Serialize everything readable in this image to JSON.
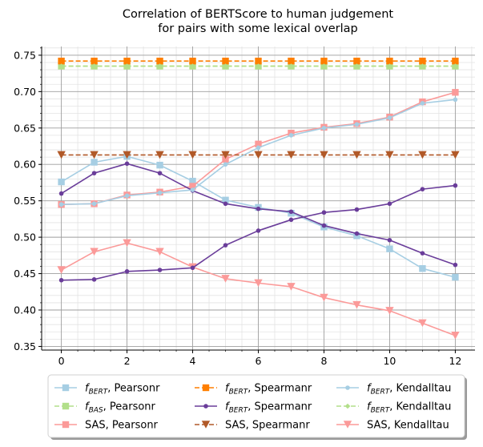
{
  "chart_data": {
    "type": "line",
    "title_lines": [
      "Correlation of BERTScore to human judgement",
      "for pairs with some lexical overlap"
    ],
    "xlabel": "",
    "ylabel": "",
    "xlim": [
      -0.6,
      12.6
    ],
    "ylim": [
      0.345,
      0.762
    ],
    "x_ticks": [
      0,
      2,
      4,
      6,
      8,
      10,
      12
    ],
    "x_tick_labels": [
      "0",
      "2",
      "4",
      "6",
      "8",
      "10",
      "12"
    ],
    "y_ticks": [
      0.35,
      0.4,
      0.45,
      0.5,
      0.55,
      0.6,
      0.65,
      0.7,
      0.75
    ],
    "y_tick_labels": [
      "0.35",
      "0.40",
      "0.45",
      "0.50",
      "0.55",
      "0.60",
      "0.65",
      "0.70",
      "0.75"
    ],
    "grid": "major and minor",
    "legend_position": "bottom, outside plot, 3 columns",
    "x": [
      0,
      1,
      2,
      3,
      4,
      5,
      6,
      7,
      8,
      9,
      10,
      11,
      12
    ],
    "series": [
      {
        "legend_main": "f",
        "legend_sub": "BERT",
        "legend_tail": ", Pearsonr",
        "color": "#a6cee3",
        "style": "solid",
        "marker": "square",
        "values": [
          0.576,
          0.603,
          0.611,
          0.599,
          0.577,
          0.551,
          0.541,
          0.533,
          0.514,
          0.502,
          0.484,
          0.457,
          0.445
        ]
      },
      {
        "legend_main": "f",
        "legend_sub": "BAS",
        "legend_tail": ", Pearsonr",
        "color": "#b2df8a",
        "style": "dashed",
        "marker": "square",
        "values": [
          0.735,
          0.735,
          0.735,
          0.735,
          0.735,
          0.735,
          0.735,
          0.735,
          0.735,
          0.735,
          0.735,
          0.735,
          0.735
        ]
      },
      {
        "legend_main": "SAS, Pearsonr",
        "legend_sub": "",
        "legend_tail": "",
        "color": "#fb9a99",
        "style": "solid",
        "marker": "square",
        "values": [
          0.545,
          0.546,
          0.558,
          0.562,
          0.57,
          0.607,
          0.628,
          0.643,
          0.651,
          0.656,
          0.665,
          0.686,
          0.699
        ]
      },
      {
        "legend_main": "f",
        "legend_sub": "BERT",
        "legend_tail": ", Spearmanr",
        "color": "#ff7f00",
        "style": "dashed",
        "marker": "square",
        "values": [
          0.742,
          0.742,
          0.742,
          0.742,
          0.742,
          0.742,
          0.742,
          0.742,
          0.742,
          0.742,
          0.742,
          0.742,
          0.742
        ]
      },
      {
        "legend_main": "f",
        "legend_sub": "BERT",
        "legend_tail": ", Spearmanr",
        "color": "#6a3d9a",
        "style": "solid",
        "marker": "dot",
        "values": [
          0.56,
          0.588,
          0.601,
          0.588,
          0.564,
          0.546,
          0.539,
          0.535,
          0.516,
          0.505,
          0.496,
          0.478,
          0.462
        ]
      },
      {
        "legend_main": "SAS, Spearmanr",
        "legend_sub": "",
        "legend_tail": "",
        "color": "#b15928",
        "style": "dashed",
        "marker": "triangle-down",
        "values": [
          0.613,
          0.613,
          0.613,
          0.613,
          0.613,
          0.613,
          0.613,
          0.613,
          0.613,
          0.613,
          0.613,
          0.613,
          0.613
        ]
      },
      {
        "legend_main": "f",
        "legend_sub": "BERT",
        "legend_tail": ", Kendalltau",
        "color": "#a6cee3",
        "style": "solid",
        "marker": "dot",
        "values": [
          0.545,
          0.546,
          0.557,
          0.561,
          0.565,
          0.6,
          0.623,
          0.64,
          0.65,
          0.655,
          0.664,
          0.684,
          0.689
        ]
      },
      {
        "legend_main": "f",
        "legend_sub": "BERT",
        "legend_tail": ", Kendalltau",
        "color": "#b2df8a",
        "style": "dashed",
        "marker": "diamond",
        "values": [
          0.735,
          0.735,
          0.735,
          0.735,
          0.735,
          0.735,
          0.735,
          0.735,
          0.735,
          0.735,
          0.735,
          0.735,
          0.735
        ]
      },
      {
        "legend_main": "SAS, Kendalltau",
        "legend_sub": "",
        "legend_tail": "",
        "color": "#fb9a99",
        "style": "solid",
        "marker": "triangle-down",
        "values": [
          0.455,
          0.48,
          0.492,
          0.48,
          0.459,
          0.443,
          0.437,
          0.432,
          0.417,
          0.407,
          0.399,
          0.382,
          0.365
        ]
      },
      {
        "legend_main": "",
        "legend_sub": "",
        "legend_tail": "",
        "color": "#6a3d9a",
        "style": "solid",
        "marker": "dot",
        "values": [
          0.441,
          0.442,
          0.453,
          0.455,
          0.458,
          0.489,
          0.509,
          0.524,
          0.534,
          0.538,
          0.546,
          0.566,
          0.571
        ]
      }
    ]
  }
}
